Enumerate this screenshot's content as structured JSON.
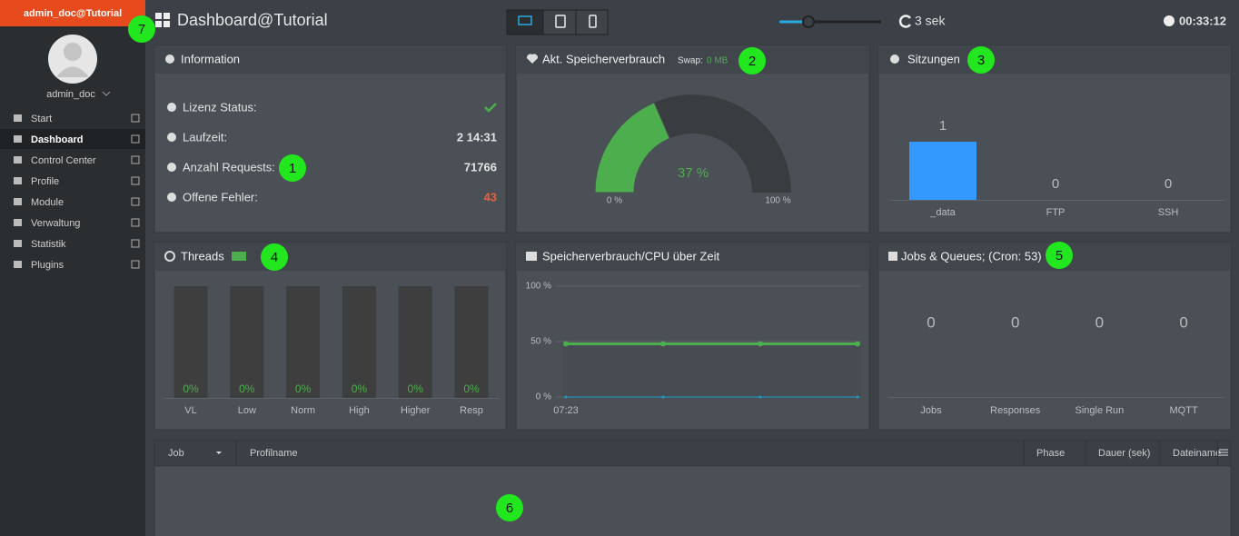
{
  "brand": "admin_doc@Tutorial",
  "user": "admin_doc",
  "nav": [
    "Start",
    "Dashboard",
    "Control Center",
    "Profile",
    "Module",
    "Verwaltung",
    "Statistik",
    "Plugins"
  ],
  "header": {
    "title": "Dashboard@Tutorial",
    "refresh": "3 sek",
    "clock": "00:33:12"
  },
  "markers": [
    "1",
    "2",
    "3",
    "4",
    "5",
    "6",
    "7"
  ],
  "information": {
    "title": "Information",
    "rows": [
      {
        "label": "Lizenz Status:"
      },
      {
        "label": "Laufzeit:",
        "value": "2 14:31"
      },
      {
        "label": "Anzahl Requests:",
        "value": "71766"
      },
      {
        "label": "Offene Fehler:",
        "value": "43"
      }
    ]
  },
  "memory": {
    "title": "Akt. Speicherverbrauch",
    "swap_label": "Swap:",
    "swap_value": "0 MB",
    "gauge": {
      "type": "gauge",
      "value": 37,
      "value_label": "37 %",
      "color": "#4cae4c",
      "ticks": [
        {
          "value": 0,
          "label": "0 %"
        },
        {
          "value": 100,
          "label": "100 %"
        }
      ]
    }
  },
  "sessions": {
    "title": "Sitzungen",
    "chart": {
      "type": "bar",
      "categories": [
        "_data",
        "FTP",
        "SSH"
      ],
      "values": [
        1,
        0,
        0
      ],
      "color": "#3399ff",
      "ylim": [
        0,
        1
      ]
    }
  },
  "threads": {
    "title": "Threads",
    "chart": {
      "type": "bar",
      "categories": [
        "VL",
        "Low",
        "Norm",
        "High",
        "Higher",
        "Resp"
      ],
      "values": [
        0,
        0,
        0,
        0,
        0,
        0
      ],
      "value_labels": [
        "0%",
        "0%",
        "0%",
        "0%",
        "0%",
        "0%"
      ],
      "color": "#4cae4c",
      "ylim": [
        0,
        100
      ]
    }
  },
  "cpu": {
    "title": "Speicherverbrauch/CPU über Zeit",
    "chart": {
      "type": "line",
      "categories": [
        "07:23",
        null,
        null,
        null
      ],
      "series": [
        {
          "color": "#4cae4c",
          "values": [
            48,
            48,
            48,
            48
          ]
        },
        {
          "color": "#1f9bc4",
          "values": [
            0,
            0,
            0,
            0
          ]
        }
      ],
      "ylim": [
        0,
        100
      ],
      "yticks": [
        {
          "value": 0,
          "label": "0 %"
        },
        {
          "value": 50,
          "label": "50 %"
        },
        {
          "value": 100,
          "label": "100 %"
        }
      ],
      "grid": true
    }
  },
  "jobs": {
    "title": "Jobs & Queues; (Cron: 53)",
    "categories": [
      "Jobs",
      "Responses",
      "Single Run",
      "MQTT"
    ],
    "values": [
      0,
      0,
      0,
      0
    ]
  },
  "table": {
    "columns": [
      "Job",
      "Profilname",
      "Phase",
      "Dauer (sek)",
      "Dateiname"
    ]
  }
}
